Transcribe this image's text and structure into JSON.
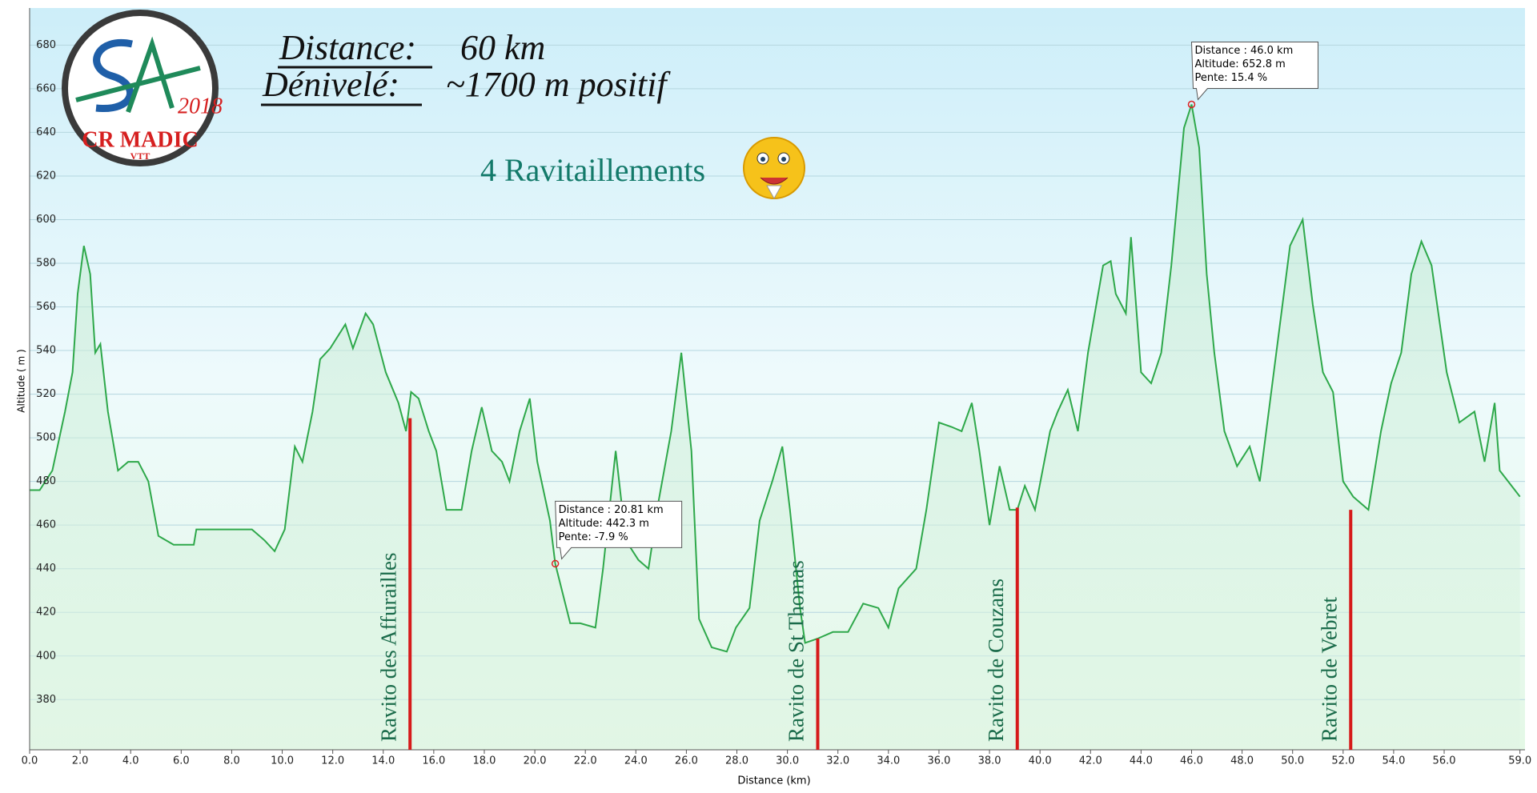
{
  "chart_data": {
    "type": "area",
    "title_lines": {
      "distance_label": "Distance:",
      "distance_value": "60 km",
      "elevation_label": "Dénivelé:",
      "elevation_value": "~1700 m positif",
      "supplies": "4 Ravitaillements"
    },
    "logo": {
      "name": "CR MADIC",
      "sub": "VTT",
      "year": "2018"
    },
    "x_label": "Distance   (km)",
    "y_label": "Altitude ( m )",
    "color": "#2ea84a",
    "x": [
      0,
      0.4,
      0.9,
      1.4,
      1.7,
      1.9,
      2.15,
      2.4,
      2.6,
      2.8,
      3.1,
      3.5,
      3.9,
      4.3,
      4.7,
      5.1,
      5.7,
      6.5,
      6.6,
      7.1,
      8.4,
      8.8,
      9.3,
      9.7,
      10.1,
      10.5,
      10.8,
      11.2,
      11.5,
      11.9,
      12.5,
      12.8,
      13.3,
      13.6,
      14.1,
      14.6,
      14.9,
      15.1,
      15.4,
      15.8,
      16.1,
      16.5,
      17.1,
      17.5,
      17.9,
      18.3,
      18.7,
      19.0,
      19.4,
      19.8,
      20.1,
      20.6,
      20.81,
      21.4,
      21.8,
      22.4,
      22.7,
      23.2,
      23.6,
      24.1,
      24.5,
      24.9,
      25.4,
      25.8,
      26.2,
      26.5,
      27.0,
      27.6,
      27.96,
      28.5,
      28.9,
      29.4,
      29.8,
      30.1,
      30.5,
      30.7,
      31.2,
      31.8,
      32.4,
      33.0,
      33.6,
      34.0,
      34.4,
      35.1,
      35.5,
      36.0,
      36.5,
      36.9,
      37.3,
      37.6,
      38.0,
      38.4,
      38.8,
      39.1,
      39.4,
      39.8,
      40.4,
      40.7,
      41.1,
      41.5,
      41.9,
      42.5,
      42.8,
      43.0,
      43.4,
      43.6,
      44.0,
      44.4,
      44.8,
      45.2,
      45.7,
      46.0,
      46.3,
      46.6,
      46.9,
      47.3,
      47.8,
      48.3,
      48.7,
      49.3,
      49.9,
      50.4,
      50.8,
      51.2,
      51.6,
      52.0,
      52.4,
      53.0,
      53.5,
      53.9,
      54.3,
      54.7,
      55.1,
      55.5,
      56.1,
      56.6,
      57.2,
      57.6,
      58.0,
      58.2,
      58.8,
      59.0
    ],
    "values": [
      476,
      476,
      485,
      512,
      530,
      566,
      588,
      575,
      539,
      543,
      512,
      485,
      489,
      489,
      480,
      455,
      451,
      451,
      458,
      458,
      458,
      458,
      453,
      448,
      458,
      496,
      489,
      512,
      536,
      541,
      552,
      541,
      557,
      552,
      530,
      516,
      503,
      521,
      518,
      503,
      494,
      467,
      467,
      494,
      514,
      494,
      489,
      480,
      503,
      518,
      489,
      462,
      442.3,
      415,
      415,
      413,
      440,
      494,
      453,
      444,
      440,
      471,
      503,
      539,
      494,
      417,
      404,
      402,
      413,
      422,
      462,
      480,
      496,
      467,
      422,
      406,
      408,
      411,
      411,
      424,
      422,
      413,
      431,
      440,
      467,
      507,
      505,
      503,
      516,
      494,
      460,
      487,
      467,
      467,
      478,
      467,
      503,
      512,
      522,
      503,
      539,
      579,
      581,
      566,
      557,
      592,
      530,
      525,
      539,
      579,
      642,
      652.8,
      633,
      575,
      539,
      503,
      487,
      496,
      480,
      534,
      588,
      600,
      561,
      530,
      521,
      480,
      473,
      467,
      503,
      525,
      539,
      575,
      590,
      579,
      530,
      507,
      512,
      489,
      516,
      485,
      476,
      473
    ],
    "xlim": [
      0,
      59.2
    ],
    "ylim": [
      357,
      697
    ],
    "xticks": [
      {
        "value": 0,
        "label": "0.0"
      },
      {
        "value": 2,
        "label": "2.0"
      },
      {
        "value": 4,
        "label": "4.0"
      },
      {
        "value": 6,
        "label": "6.0"
      },
      {
        "value": 8,
        "label": "8.0"
      },
      {
        "value": 10,
        "label": "10.0"
      },
      {
        "value": 12,
        "label": "12.0"
      },
      {
        "value": 14,
        "label": "14.0"
      },
      {
        "value": 16,
        "label": "16.0"
      },
      {
        "value": 18,
        "label": "18.0"
      },
      {
        "value": 20,
        "label": "20.0"
      },
      {
        "value": 22,
        "label": "22.0"
      },
      {
        "value": 24,
        "label": "24.0"
      },
      {
        "value": 26,
        "label": "26.0"
      },
      {
        "value": 28,
        "label": "28.0"
      },
      {
        "value": 30,
        "label": "30.0"
      },
      {
        "value": 32,
        "label": "32.0"
      },
      {
        "value": 34,
        "label": "34.0"
      },
      {
        "value": 36,
        "label": "36.0"
      },
      {
        "value": 38,
        "label": "38.0"
      },
      {
        "value": 40,
        "label": "40.0"
      },
      {
        "value": 42,
        "label": "42.0"
      },
      {
        "value": 44,
        "label": "44.0"
      },
      {
        "value": 46,
        "label": "46.0"
      },
      {
        "value": 48,
        "label": "48.0"
      },
      {
        "value": 50,
        "label": "50.0"
      },
      {
        "value": 52,
        "label": "52.0"
      },
      {
        "value": 54,
        "label": "54.0"
      },
      {
        "value": 56,
        "label": "56.0"
      },
      {
        "value": 59,
        "label": "59.0"
      }
    ],
    "yticks": [
      380,
      400,
      420,
      440,
      460,
      480,
      500,
      520,
      540,
      560,
      580,
      600,
      620,
      640,
      660,
      680
    ],
    "grid": true,
    "ravitos": [
      {
        "label": "Ravito  des Affurailles",
        "x": 15.06,
        "altitude": 509,
        "color": "#d61a1a"
      },
      {
        "label": "Ravito  de St Thomas",
        "x": 31.2,
        "altitude": 408,
        "color": "#d61a1a"
      },
      {
        "label": "Ravito  de Couzans",
        "x": 39.1,
        "altitude": 468,
        "color": "#d61a1a"
      },
      {
        "label": "Ravito  de Vebret",
        "x": 52.3,
        "altitude": 467,
        "color": "#d61a1a"
      }
    ],
    "tooltips": [
      {
        "x": 20.81,
        "y": 442.3,
        "lines": [
          "Distance  : 20.81 km",
          "Altitude: 442.3 m",
          "Pente: -7.9 %"
        ]
      },
      {
        "x": 46.0,
        "y": 652.8,
        "lines": [
          "Distance  : 46.0 km",
          "Altitude: 652.8 m",
          "Pente: 15.4 %"
        ]
      }
    ]
  }
}
